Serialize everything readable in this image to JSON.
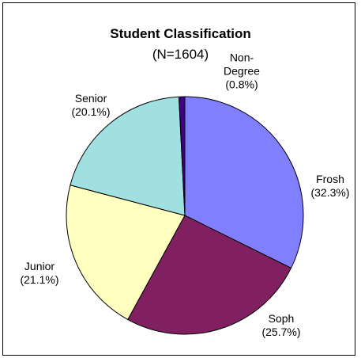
{
  "chart_data": {
    "type": "pie",
    "title": "Student Classification",
    "subtitle": "(N=1604)",
    "categories": [
      "Frosh",
      "Soph",
      "Junior",
      "Senior",
      "Non-Degree"
    ],
    "values": [
      32.3,
      25.7,
      21.1,
      20.1,
      0.8
    ],
    "value_labels": [
      "(32.3%)",
      "(25.7%)",
      "(21.1%)",
      "(20.1%)",
      "(0.8%)"
    ],
    "colors": [
      "#8080ff",
      "#802060",
      "#ffffc0",
      "#a0e0e0",
      "#400080"
    ]
  }
}
